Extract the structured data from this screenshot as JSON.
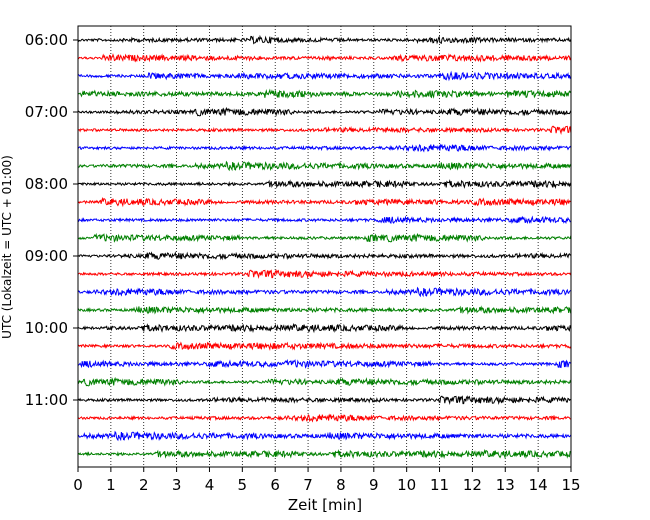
{
  "chart_data": {
    "type": "line",
    "title": "",
    "xlabel": "Zeit  [min]",
    "ylabel": "UTC (Lokalzeit = UTC + 01:00)",
    "xlim": [
      0,
      15
    ],
    "x_ticks": [
      "0",
      "1",
      "2",
      "3",
      "4",
      "5",
      "6",
      "7",
      "8",
      "9",
      "10",
      "11",
      "12",
      "13",
      "14",
      "15"
    ],
    "y_ticks": [
      "06:00",
      "07:00",
      "08:00",
      "09:00",
      "10:00",
      "11:00"
    ],
    "grid": {
      "vertical_dotted": true,
      "horizontal": false
    },
    "trace_interval_minutes": 15,
    "start_time": "06:00",
    "trace_count": 24,
    "colors": [
      "#000000",
      "#ff0000",
      "#0000ff",
      "#008000"
    ],
    "series": [
      {
        "start": "06:00",
        "color": "#000000"
      },
      {
        "start": "06:15",
        "color": "#ff0000"
      },
      {
        "start": "06:30",
        "color": "#0000ff"
      },
      {
        "start": "06:45",
        "color": "#008000"
      },
      {
        "start": "07:00",
        "color": "#000000"
      },
      {
        "start": "07:15",
        "color": "#ff0000"
      },
      {
        "start": "07:30",
        "color": "#0000ff"
      },
      {
        "start": "07:45",
        "color": "#008000"
      },
      {
        "start": "08:00",
        "color": "#000000"
      },
      {
        "start": "08:15",
        "color": "#ff0000"
      },
      {
        "start": "08:30",
        "color": "#0000ff"
      },
      {
        "start": "08:45",
        "color": "#008000"
      },
      {
        "start": "09:00",
        "color": "#000000"
      },
      {
        "start": "09:15",
        "color": "#ff0000"
      },
      {
        "start": "09:30",
        "color": "#0000ff"
      },
      {
        "start": "09:45",
        "color": "#008000"
      },
      {
        "start": "10:00",
        "color": "#000000"
      },
      {
        "start": "10:15",
        "color": "#ff0000"
      },
      {
        "start": "10:30",
        "color": "#0000ff"
      },
      {
        "start": "10:45",
        "color": "#008000"
      },
      {
        "start": "11:00",
        "color": "#000000"
      },
      {
        "start": "11:15",
        "color": "#ff0000"
      },
      {
        "start": "11:30",
        "color": "#0000ff"
      },
      {
        "start": "11:45",
        "color": "#008000"
      }
    ]
  }
}
